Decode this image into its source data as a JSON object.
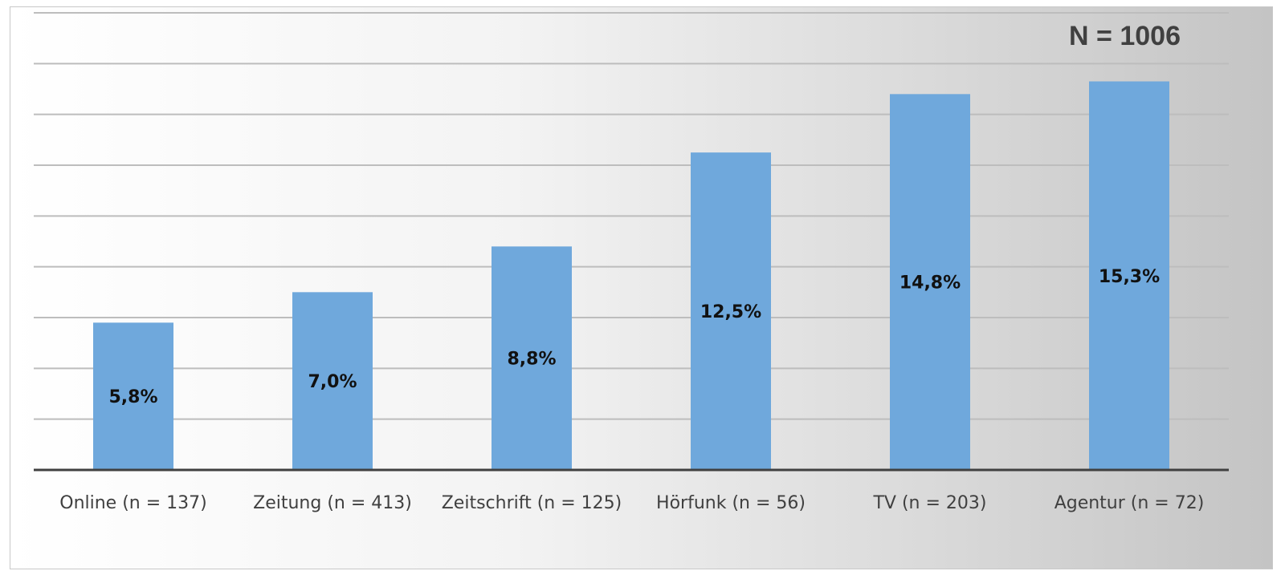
{
  "chart_data": {
    "type": "bar",
    "title": "",
    "annotation": "N = 1006",
    "categories": [
      "Online (n = 137)",
      "Zeitung (n = 413)",
      "Zeitschrift (n = 125)",
      "Hörfunk (n = 56)",
      "TV (n = 203)",
      "Agentur (n = 72)"
    ],
    "values": [
      5.8,
      7.0,
      8.8,
      12.5,
      14.8,
      15.3
    ],
    "data_labels": [
      "5,8%",
      "7,0%",
      "8,8%",
      "12,5%",
      "14,8%",
      "15,3%"
    ],
    "xlabel": "",
    "ylabel": "",
    "ylim": [
      0,
      18
    ],
    "y_gridlines": [
      2,
      4,
      6,
      8,
      10,
      12,
      14,
      16,
      18
    ],
    "grid": true,
    "legend": "none",
    "colors": {
      "bar": "#6fa8dc",
      "gridline": "#bdbdbd",
      "axis": "#404040"
    }
  }
}
